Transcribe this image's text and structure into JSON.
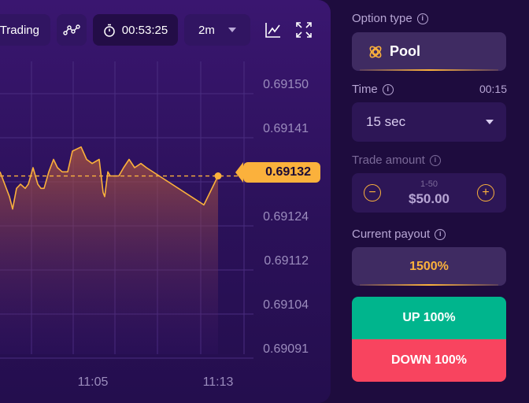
{
  "toolbar": {
    "trading_label": "Trading",
    "timer": "00:53:25",
    "period": "2m"
  },
  "chart": {
    "y_ticks": [
      "0.69150",
      "0.69141",
      "0.69132",
      "0.69124",
      "0.69112",
      "0.69104",
      "0.69091"
    ],
    "x_ticks": [
      "11:05",
      "11:13"
    ],
    "current_price": "0.69132",
    "colors": {
      "line": "#fbb13c",
      "grid": "#4a2d80",
      "accent": "#fbb13c"
    }
  },
  "chart_data": {
    "type": "area",
    "xlabel": "",
    "ylabel": "",
    "ylim": [
      0.69088,
      0.69157
    ],
    "x_ticks": [
      "11:05",
      "11:13"
    ],
    "current_value": 0.69132,
    "series": [
      {
        "values": [
          0.69133,
          0.6913,
          0.69127,
          0.69124,
          0.69129,
          0.6913,
          0.69129,
          0.6913,
          0.69134,
          0.6913,
          0.69129,
          0.69129,
          0.69133,
          0.69136,
          0.69134,
          0.69133,
          0.69133,
          0.69138,
          0.69139,
          0.69136,
          0.69135,
          0.69136,
          0.69128,
          0.69127,
          0.69133,
          0.69132,
          0.69132,
          0.69134,
          0.69136,
          0.69134,
          0.69135,
          0.69134,
          0.69125,
          0.69132
        ]
      }
    ]
  },
  "side": {
    "option_type_label": "Option type",
    "option_type_value": "Pool",
    "time_label": "Time",
    "time_countdown": "00:15",
    "time_value": "15 sec",
    "amount_label": "Trade amount",
    "amount_range": "1-50",
    "amount_value": "$50.00",
    "payout_label": "Current payout",
    "payout_value": "1500%",
    "up_label": "UP 100%",
    "down_label": "DOWN 100%",
    "colors": {
      "up": "#00b58d",
      "down": "#f8445f",
      "accent": "#fbb13c"
    }
  }
}
